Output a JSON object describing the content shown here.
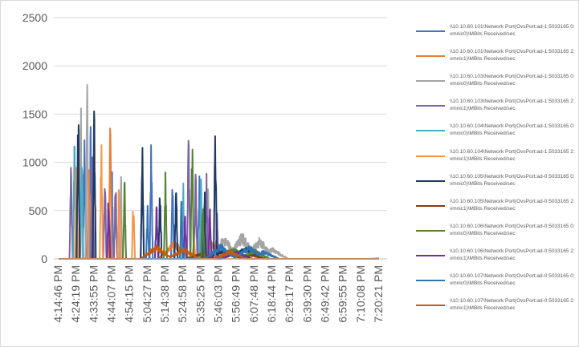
{
  "chart_data": {
    "type": "line",
    "title": "",
    "xlabel": "",
    "ylabel": "",
    "ylim": [
      0,
      2500
    ],
    "yticks": [
      0,
      500,
      1000,
      1500,
      2000,
      2500
    ],
    "xticks": [
      "4:14:46 PM",
      "4:24:19 PM",
      "4:33:55 PM",
      "4:44:07 PM",
      "4:54:15 PM",
      "5:04:27 PM",
      "5:14:38 PM",
      "5:24:58 PM",
      "5:35:25 PM",
      "5:46:03 PM",
      "5:56:49 PM",
      "6:07:48 PM",
      "6:18:44 PM",
      "6:29:17 PM",
      "6:39:30 PM",
      "6:49:42 PM",
      "6:59:55 PM",
      "7:10:08 PM",
      "7:20:21 PM"
    ],
    "grid": "horizontal",
    "legend_position": "right",
    "series": [
      {
        "name": "\\\\10.10.60.101\\Network Port(OvsPort:ad-1:5033165 0:vmnic0)\\MBits Received/sec",
        "color": "#4472c4",
        "peaks": [
          [
            1.45,
            1350
          ],
          [
            1.8,
            1700
          ],
          [
            3.0,
            1000
          ],
          [
            4.7,
            1300
          ],
          [
            5.2,
            1340
          ],
          [
            6.4,
            900
          ],
          [
            7.9,
            950
          ]
        ]
      },
      {
        "name": "\\\\10.10.60.101\\Network Port(OvsPort:ad-1:5033165 2:vmnic1)\\MBits Received/sec",
        "color": "#ed7d31",
        "peaks": [
          [
            1.7,
            1300
          ],
          [
            2.9,
            1500
          ],
          [
            6.5,
            200
          ],
          [
            8.6,
            180
          ]
        ]
      },
      {
        "name": "\\\\10.10.60.103\\Network Port(OvsPort:ad-1:5033165 0:vmnic0)\\MBits Received/sec",
        "color": "#a5a5a5",
        "peaks": [
          [
            1.25,
            1950
          ],
          [
            1.6,
            2070
          ],
          [
            1.9,
            1500
          ],
          [
            3.5,
            1000
          ],
          [
            8.4,
            870
          ],
          [
            9.3,
            250
          ],
          [
            10.3,
            280
          ],
          [
            11.3,
            230
          ],
          [
            12.0,
            120
          ]
        ]
      },
      {
        "name": "\\\\10.10.60.103\\Network Port(OvsPort:ad-1:5033165 2:vmnic1)\\MBits Received/sec",
        "color": "#8064a2",
        "peaks": [
          [
            0.7,
            1200
          ],
          [
            1.9,
            1450
          ],
          [
            2.6,
            1000
          ],
          [
            3.2,
            1020
          ],
          [
            7.3,
            1570
          ],
          [
            7.7,
            1000
          ],
          [
            8.3,
            970
          ],
          [
            8.9,
            500
          ]
        ]
      },
      {
        "name": "\\\\10.10.60.104\\Network Port(OvsPort:ad-1:5033165 0:vmnic0)\\MBits Received/sec",
        "color": "#4bacc6",
        "peaks": [
          [
            0.9,
            1470
          ],
          [
            1.3,
            1500
          ],
          [
            7.0,
            1000
          ],
          [
            8.0,
            900
          ]
        ]
      },
      {
        "name": "\\\\10.10.60.104\\Network Port(OvsPort:ad-1:5033165 2:vmnic1)\\MBits Received/sec",
        "color": "#f79646",
        "peaks": [
          [
            1.0,
            1220
          ],
          [
            2.4,
            1550
          ],
          [
            3.4,
            980
          ],
          [
            4.2,
            800
          ],
          [
            7.6,
            300
          ]
        ]
      },
      {
        "name": "\\\\10.10.60.105\\Network Port(OvsPort:ad-0:5033165 0:vmnic0)\\MBits Received/sec",
        "color": "#1f3864",
        "peaks": [
          [
            1.1,
            2100
          ],
          [
            2.0,
            1850
          ],
          [
            4.7,
            1280
          ],
          [
            5.7,
            880
          ],
          [
            6.6,
            1000
          ],
          [
            8.2,
            830
          ],
          [
            8.8,
            1640
          ],
          [
            9.3,
            110
          ],
          [
            10.5,
            130
          ]
        ]
      },
      {
        "name": "\\\\10.10.60.105\\Network Port(OvsPort:ad-0:5033165 2:vmnic1)\\MBits Received/sec",
        "color": "#843c0c",
        "peaks": [
          [
            8.0,
            60
          ],
          [
            9.5,
            70
          ],
          [
            10.8,
            50
          ]
        ]
      },
      {
        "name": "\\\\10.10.60.106\\Network Port(OvsPort:ad-0:5033165 0:vmnic0)\\MBits Received/sec",
        "color": "#548235",
        "peaks": [
          [
            3.7,
            980
          ],
          [
            6.0,
            950
          ],
          [
            7.5,
            1460
          ],
          [
            8.1,
            740
          ],
          [
            9.8,
            120
          ],
          [
            11.0,
            100
          ]
        ]
      },
      {
        "name": "\\\\10.10.60.106\\Network Port(OvsPort:ad-0:5033165 2:vmnic1)\\MBits Received/sec",
        "color": "#7030a0",
        "peaks": [
          [
            2.8,
            720
          ],
          [
            5.5,
            680
          ],
          [
            7.1,
            500
          ],
          [
            8.5,
            600
          ],
          [
            10.0,
            80
          ]
        ]
      },
      {
        "name": "\\\\10.10.60.107\\Network Port(OvsPort:ad-0:5033165 0:vmnic0)\\MBits Received/sec",
        "color": "#2e75b6",
        "peaks": [
          [
            5.0,
            600
          ],
          [
            6.9,
            700
          ],
          [
            9.1,
            160
          ],
          [
            10.7,
            150
          ],
          [
            11.5,
            90
          ]
        ]
      },
      {
        "name": "\\\\10.10.60.107\\Network Port(OvsPort:ad-0:5033165 2:vmnic1)\\MBits Received/sec",
        "color": "#c55a11",
        "peaks": [
          [
            5.5,
            150
          ],
          [
            7.0,
            120
          ],
          [
            9.6,
            90
          ],
          [
            18.4,
            10
          ]
        ]
      }
    ]
  }
}
